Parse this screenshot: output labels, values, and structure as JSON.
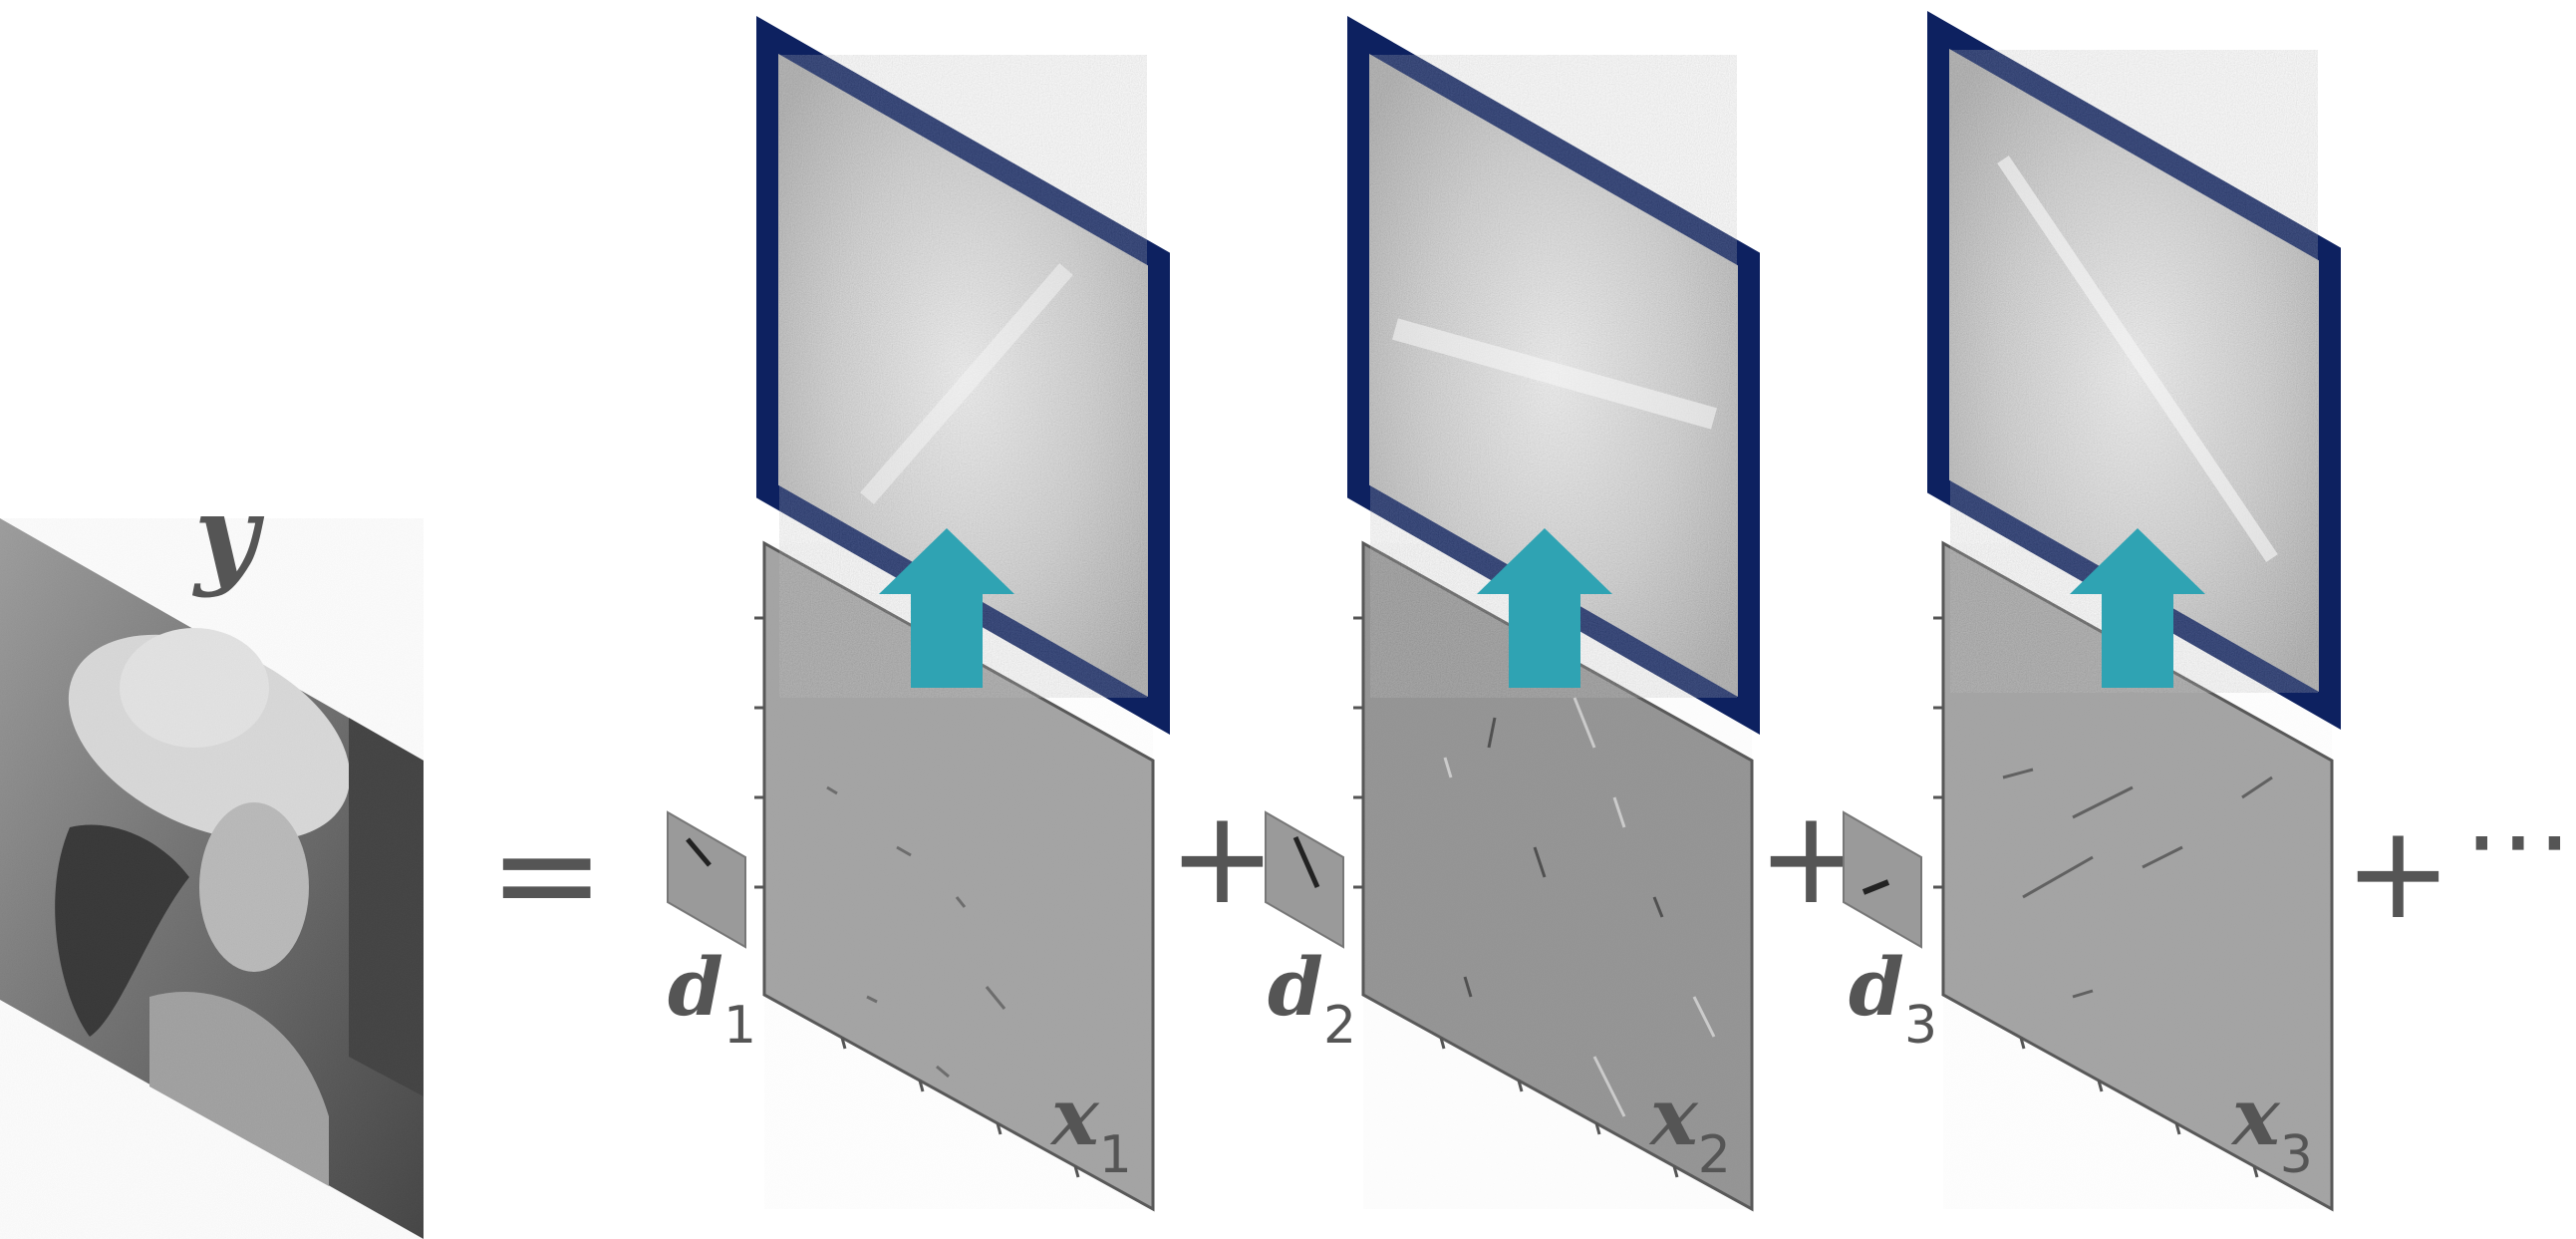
{
  "image_label": {
    "text": "y",
    "subscript": ""
  },
  "equals": "=",
  "terms": [
    {
      "filter": {
        "text": "d",
        "subscript": "1"
      },
      "map": {
        "text": "x",
        "subscript": "1"
      },
      "plus": "+"
    },
    {
      "filter": {
        "text": "d",
        "subscript": "2"
      },
      "map": {
        "text": "x",
        "subscript": "2"
      },
      "plus": "+"
    },
    {
      "filter": {
        "text": "d",
        "subscript": "3"
      },
      "map": {
        "text": "x",
        "subscript": "3"
      },
      "plus": "+"
    }
  ],
  "ellipsis": "⋯",
  "colors": {
    "frame": "#0d2160",
    "arrow": "#2fa3b3",
    "map_fill": "#a3a3a3",
    "map_fill_alt": "#939393",
    "text": "#555555"
  },
  "icons": [
    "photo-image",
    "frequency-spectrum",
    "up-arrow",
    "filter-patch",
    "feature-map"
  ]
}
